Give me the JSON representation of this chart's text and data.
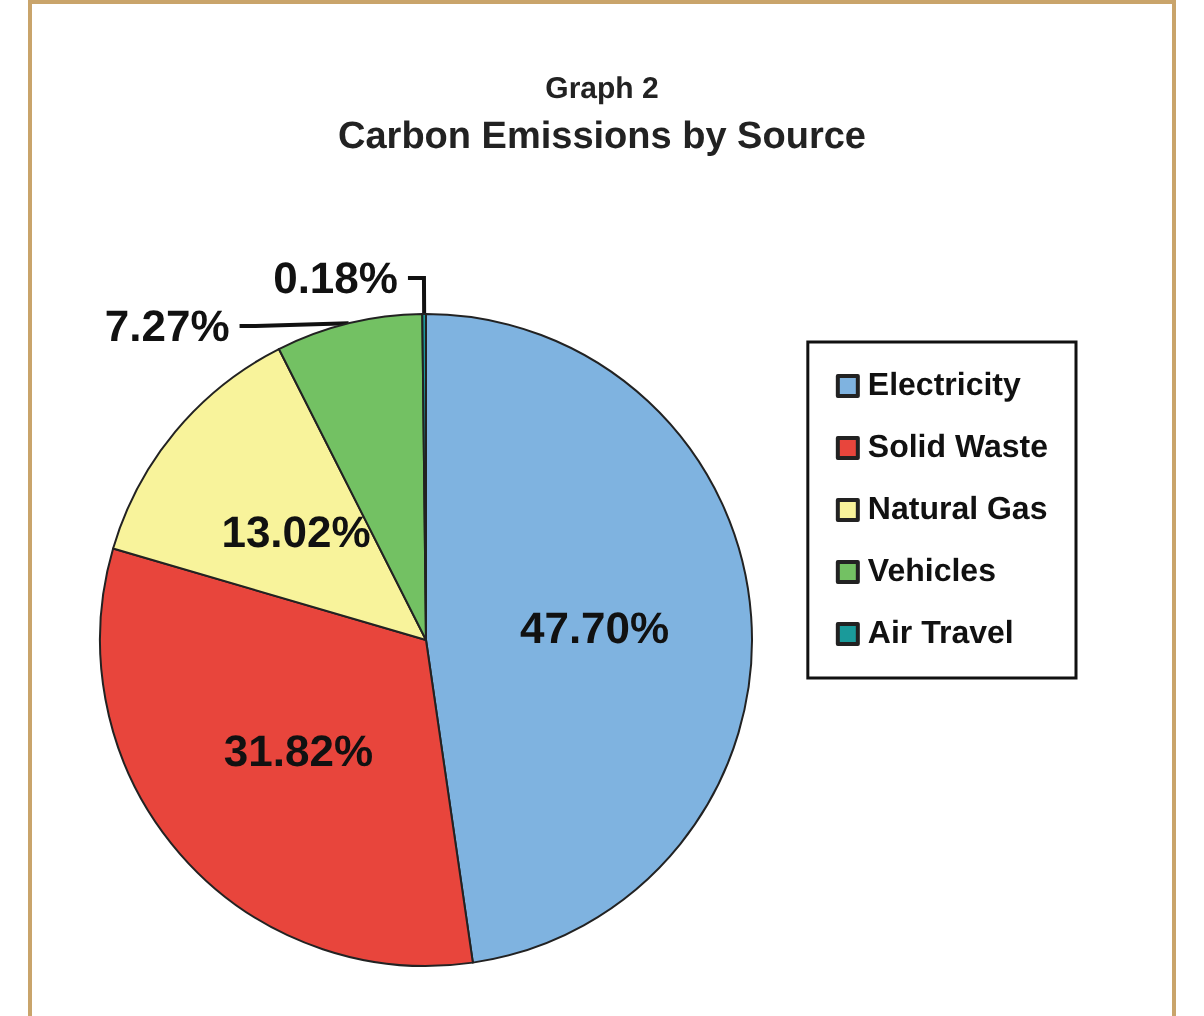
{
  "chart_data": {
    "type": "pie",
    "subtitle": "Graph 2",
    "title": "Carbon Emissions by Source",
    "categories": [
      "Electricity",
      "Solid Waste",
      "Natural Gas",
      "Vehicles",
      "Air Travel"
    ],
    "values": [
      47.7,
      31.82,
      13.02,
      7.27,
      0.18
    ],
    "colors": [
      "#7fb3e0",
      "#e8453c",
      "#f8f39b",
      "#73c163",
      "#1a9a9a"
    ],
    "value_labels": [
      "47.70%",
      "31.82%",
      "13.02%",
      "7.27%",
      "0.18%"
    ],
    "legend": "right"
  }
}
